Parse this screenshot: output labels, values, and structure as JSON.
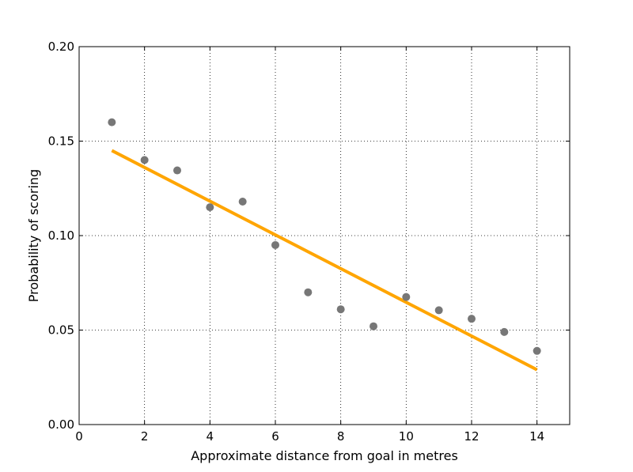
{
  "chart_data": {
    "type": "scatter",
    "title": "",
    "xlabel": "Approximate distance from goal in metres",
    "ylabel": "Probability of scoring",
    "xlim": [
      0,
      15
    ],
    "ylim": [
      0,
      0.2
    ],
    "x_ticks": [
      0,
      2,
      4,
      6,
      8,
      10,
      12,
      14
    ],
    "y_ticks": [
      0,
      0.05,
      0.1,
      0.15,
      0.2
    ],
    "x_tick_labels": [
      "0",
      "2",
      "4",
      "6",
      "8",
      "10",
      "12",
      "14"
    ],
    "y_tick_labels": [
      "0.00",
      "0.05",
      "0.10",
      "0.15",
      "0.20"
    ],
    "grid": true,
    "series": [
      {
        "type": "scatter",
        "color": "#777777",
        "x": [
          1,
          2,
          3,
          4,
          5,
          6,
          7,
          8,
          9,
          10,
          11,
          12,
          13,
          14
        ],
        "y": [
          0.16,
          0.14,
          0.1345,
          0.115,
          0.118,
          0.095,
          0.07,
          0.061,
          0.052,
          0.0675,
          0.0605,
          0.056,
          0.049,
          0.039
        ]
      },
      {
        "type": "line",
        "color": "#FFA500",
        "x": [
          1,
          14
        ],
        "y": [
          0.145,
          0.029
        ]
      }
    ]
  }
}
